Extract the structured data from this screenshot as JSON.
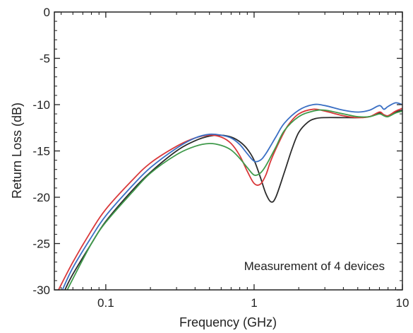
{
  "chart_data": {
    "type": "line",
    "title": "",
    "xlabel": "Frequency (GHz)",
    "ylabel": "Return Loss (dB)",
    "x_scale": "log",
    "xlim": [
      0.045,
      10
    ],
    "ylim": [
      -30,
      0
    ],
    "x_ticks": [
      {
        "value": 0.1,
        "label": "0.1"
      },
      {
        "value": 1,
        "label": "1"
      },
      {
        "value": 10,
        "label": "10"
      }
    ],
    "y_ticks": [
      {
        "value": 0,
        "label": "0"
      },
      {
        "value": -5,
        "label": "-5"
      },
      {
        "value": -10,
        "label": "-10"
      },
      {
        "value": -15,
        "label": "-15"
      },
      {
        "value": -20,
        "label": "-20"
      },
      {
        "value": -25,
        "label": "-25"
      },
      {
        "value": -30,
        "label": "-30"
      }
    ],
    "grid": false,
    "annotation": "Measurement of 4 devices",
    "series": [
      {
        "color": "#2b2b2b",
        "x": [
          0.053,
          0.06,
          0.08,
          0.1,
          0.15,
          0.2,
          0.3,
          0.4,
          0.5,
          0.6,
          0.7,
          0.8,
          0.9,
          1.0,
          1.1,
          1.2,
          1.3,
          1.4,
          1.6,
          1.8,
          2.0,
          2.3,
          2.6,
          3.0,
          4.0,
          5.0,
          6.0,
          7.0,
          7.5,
          8.0,
          9.0,
          10.0
        ],
        "y": [
          -30.0,
          -28.3,
          -25.0,
          -22.6,
          -19.3,
          -17.3,
          -15.0,
          -13.9,
          -13.4,
          -13.3,
          -13.5,
          -14.0,
          -14.8,
          -16.0,
          -17.8,
          -19.6,
          -20.5,
          -20.0,
          -17.3,
          -14.8,
          -13.0,
          -11.9,
          -11.5,
          -11.4,
          -11.4,
          -11.4,
          -11.3,
          -10.9,
          -11.1,
          -11.2,
          -10.8,
          -10.6
        ]
      },
      {
        "color": "#d9383a",
        "x": [
          0.048,
          0.06,
          0.08,
          0.1,
          0.15,
          0.2,
          0.3,
          0.4,
          0.5,
          0.6,
          0.7,
          0.8,
          0.9,
          1.0,
          1.1,
          1.2,
          1.3,
          1.5,
          1.7,
          2.0,
          2.5,
          3.0,
          4.0,
          5.0,
          6.0,
          7.0,
          7.5,
          8.0,
          9.0,
          10.0
        ],
        "y": [
          -30.0,
          -27.0,
          -23.6,
          -21.3,
          -18.2,
          -16.3,
          -14.5,
          -13.6,
          -13.3,
          -13.5,
          -14.2,
          -15.5,
          -17.2,
          -18.5,
          -18.6,
          -17.6,
          -16.0,
          -13.8,
          -12.2,
          -11.0,
          -10.5,
          -10.7,
          -11.2,
          -11.4,
          -11.3,
          -10.8,
          -11.1,
          -11.2,
          -10.7,
          -10.4
        ]
      },
      {
        "color": "#3a6fc4",
        "x": [
          0.051,
          0.06,
          0.08,
          0.1,
          0.15,
          0.2,
          0.3,
          0.4,
          0.5,
          0.6,
          0.7,
          0.8,
          0.9,
          1.0,
          1.1,
          1.2,
          1.4,
          1.6,
          2.0,
          2.5,
          3.0,
          4.0,
          5.0,
          6.0,
          7.0,
          7.5,
          8.0,
          9.0,
          10.0
        ],
        "y": [
          -30.0,
          -27.6,
          -24.3,
          -22.0,
          -18.8,
          -16.8,
          -14.7,
          -13.6,
          -13.2,
          -13.3,
          -13.6,
          -14.3,
          -15.3,
          -16.1,
          -16.0,
          -15.3,
          -13.5,
          -12.0,
          -10.6,
          -10.0,
          -10.1,
          -10.6,
          -10.8,
          -10.6,
          -10.1,
          -10.5,
          -10.2,
          -9.8,
          -10.0
        ]
      },
      {
        "color": "#3f9a4a",
        "x": [
          0.055,
          0.06,
          0.08,
          0.1,
          0.15,
          0.2,
          0.3,
          0.4,
          0.5,
          0.6,
          0.7,
          0.8,
          0.9,
          1.0,
          1.1,
          1.2,
          1.4,
          1.6,
          2.0,
          2.5,
          3.0,
          4.0,
          5.0,
          6.0,
          7.0,
          7.5,
          8.0,
          9.0,
          10.0
        ],
        "y": [
          -30.0,
          -28.8,
          -25.0,
          -22.7,
          -19.5,
          -17.4,
          -15.4,
          -14.5,
          -14.2,
          -14.4,
          -14.9,
          -15.8,
          -16.8,
          -17.6,
          -17.4,
          -16.6,
          -14.6,
          -12.8,
          -11.3,
          -10.7,
          -10.6,
          -11.0,
          -11.3,
          -11.3,
          -11.0,
          -11.2,
          -11.3,
          -10.9,
          -10.7
        ]
      }
    ]
  }
}
